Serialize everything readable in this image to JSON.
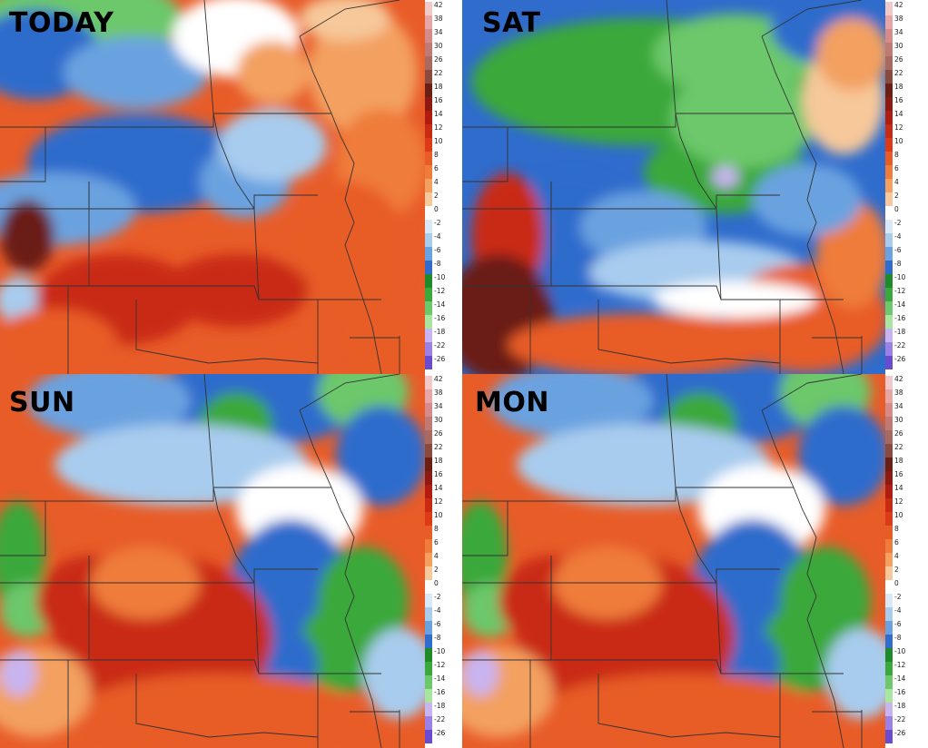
{
  "panels": [
    {
      "id": "today",
      "title": "TODAY"
    },
    {
      "id": "sat",
      "title": "SAT"
    },
    {
      "id": "sun",
      "title": "SUN"
    },
    {
      "id": "mon",
      "title": "MON"
    }
  ],
  "colorbar": {
    "labels": [
      "42",
      "38",
      "34",
      "30",
      "26",
      "22",
      "18",
      "16",
      "14",
      "12",
      "10",
      "8",
      "6",
      "4",
      "2",
      "0",
      "-2",
      "-4",
      "-6",
      "-8",
      "-10",
      "-12",
      "-14",
      "-16",
      "-18",
      "-22",
      "-26"
    ],
    "colors": [
      "#f2c9c9",
      "#e8a5a5",
      "#d68a8a",
      "#c07a74",
      "#a86a60",
      "#8a4a3e",
      "#6a1f12",
      "#8c1a10",
      "#b01c10",
      "#c92a14",
      "#dd3a18",
      "#e85c28",
      "#ef7c3a",
      "#f3a060",
      "#f6c89a",
      "#ffffff",
      "#d9e9f7",
      "#a8ccee",
      "#6aa2e0",
      "#2f6ccc",
      "#1f8a2a",
      "#3aa83a",
      "#6cc86a",
      "#a8e6a0",
      "#c8b4f0",
      "#9c80e6",
      "#6a4cd0"
    ]
  }
}
